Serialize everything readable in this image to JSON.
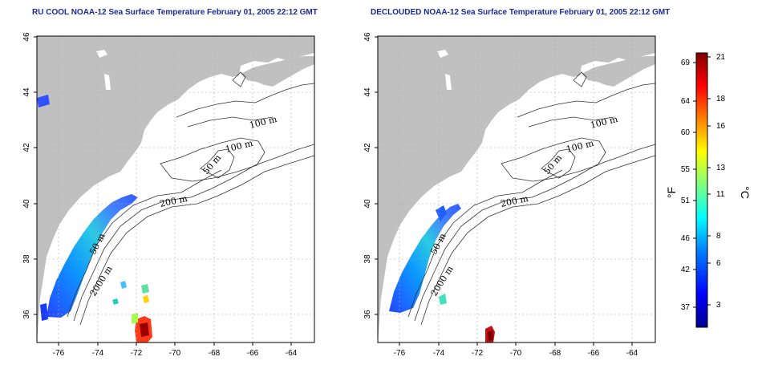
{
  "titles": {
    "left": "RU COOL NOAA-12 Sea Surface Temperature February 01, 2005 22:12 GMT",
    "right": "DECLOUDED NOAA-12 Sea Surface Temperature February 01, 2005 22:12 GMT"
  },
  "map": {
    "lon_range": [
      -77.2,
      -62.8
    ],
    "lat_range": [
      35,
      46
    ],
    "lon_ticks": [
      -76,
      -74,
      -72,
      -70,
      -68,
      -66,
      -64
    ],
    "lat_ticks": [
      36,
      38,
      40,
      42,
      44,
      46
    ],
    "lon_tick_labels": [
      "-76",
      "-74",
      "-72",
      "-70",
      "-68",
      "-66",
      "-64"
    ],
    "lat_tick_labels": [
      "36",
      "38",
      "40",
      "42",
      "44",
      "46"
    ],
    "contour_labels": [
      "100 m",
      "100 m",
      "50 m",
      "200 m",
      "2000 m",
      "50 m"
    ],
    "grid": true,
    "land_color": "#c0c0c0"
  },
  "colorbar": {
    "fahrenheit_labels": [
      "37",
      "42",
      "46",
      "51",
      "55",
      "60",
      "64",
      "69"
    ],
    "celsius_labels": [
      "3",
      "6",
      "8",
      "11",
      "13",
      "16",
      "18",
      "21"
    ],
    "fahrenheit_unit": "°F",
    "celsius_unit": "°C",
    "colors": [
      "#00008f",
      "#0000ff",
      "#0080ff",
      "#00ffff",
      "#80ff80",
      "#ffff00",
      "#ff8000",
      "#ff0000",
      "#800000"
    ]
  }
}
